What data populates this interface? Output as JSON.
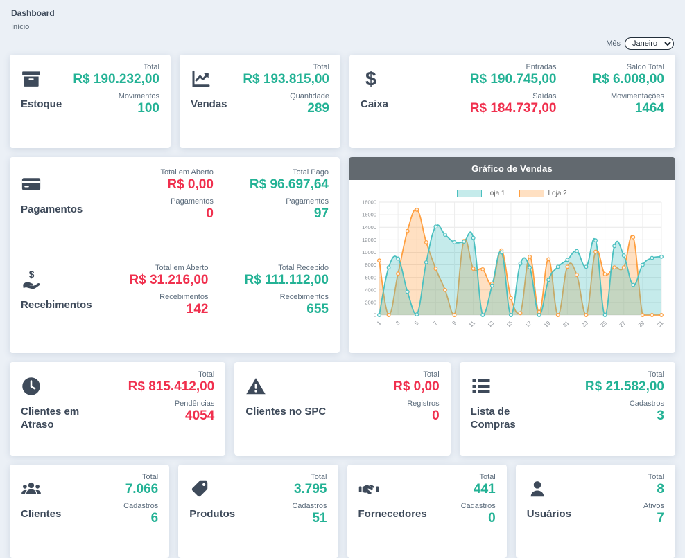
{
  "page": {
    "title": "Dashboard",
    "breadcrumb": "Início"
  },
  "month_filter": {
    "label": "Mês",
    "selected": "Janeiro"
  },
  "colors": {
    "green": "#23b295",
    "red": "#f0304e",
    "navy": "#3e4a5a",
    "chart_header_bg": "#62696f",
    "page_bg": "#ebf0f6",
    "series_teal": "#4bc0c0",
    "series_orange": "#ff9f40"
  },
  "cards": {
    "estoque": {
      "label": "Estoque",
      "icon": "box-icon",
      "stats": [
        {
          "label": "Total",
          "value": "R$ 190.232,00",
          "color": "green"
        },
        {
          "label": "Movimentos",
          "value": "100",
          "color": "green"
        }
      ]
    },
    "vendas": {
      "label": "Vendas",
      "icon": "line-chart-icon",
      "stats": [
        {
          "label": "Total",
          "value": "R$ 193.815,00",
          "color": "green"
        },
        {
          "label": "Quantidade",
          "value": "289",
          "color": "green"
        }
      ]
    },
    "caixa": {
      "label": "Caixa",
      "icon": "dollar-icon",
      "col1": [
        {
          "label": "Entradas",
          "value": "R$ 190.745,00",
          "color": "green"
        },
        {
          "label": "Saídas",
          "value": "R$ 184.737,00",
          "color": "red"
        }
      ],
      "col2": [
        {
          "label": "Saldo Total",
          "value": "R$ 6.008,00",
          "color": "green"
        },
        {
          "label": "Movimentações",
          "value": "1464",
          "color": "green"
        }
      ]
    },
    "pagamentos": {
      "label": "Pagamentos",
      "icon": "credit-card-icon",
      "col1": [
        {
          "label": "Total em Aberto",
          "value": "R$ 0,00",
          "color": "red"
        },
        {
          "label": "Pagamentos",
          "value": "0",
          "color": "red"
        }
      ],
      "col2": [
        {
          "label": "Total Pago",
          "value": "R$ 96.697,64",
          "color": "green"
        },
        {
          "label": "Pagamentos",
          "value": "97",
          "color": "green"
        }
      ]
    },
    "recebimentos": {
      "label": "Recebimentos",
      "icon": "hand-dollar-icon",
      "col1": [
        {
          "label": "Total em Aberto",
          "value": "R$ 31.216,00",
          "color": "red"
        },
        {
          "label": "Recebimentos",
          "value": "142",
          "color": "red"
        }
      ],
      "col2": [
        {
          "label": "Total Recebido",
          "value": "R$ 111.112,00",
          "color": "green"
        },
        {
          "label": "Recebimentos",
          "value": "655",
          "color": "green"
        }
      ]
    },
    "clientes_atraso": {
      "label": "Clientes em Atraso",
      "icon": "clock-icon",
      "stats": [
        {
          "label": "Total",
          "value": "R$ 815.412,00",
          "color": "red"
        },
        {
          "label": "Pendências",
          "value": "4054",
          "color": "red"
        }
      ]
    },
    "clientes_spc": {
      "label": "Clientes no SPC",
      "icon": "warning-icon",
      "stats": [
        {
          "label": "Total",
          "value": "R$ 0,00",
          "color": "red"
        },
        {
          "label": "Registros",
          "value": "0",
          "color": "red"
        }
      ]
    },
    "lista_compras": {
      "label": "Lista de Compras",
      "icon": "list-icon",
      "stats": [
        {
          "label": "Total",
          "value": "R$ 21.582,00",
          "color": "green"
        },
        {
          "label": "Cadastros",
          "value": "3",
          "color": "green"
        }
      ]
    },
    "clientes": {
      "label": "Clientes",
      "icon": "users-icon",
      "stats": [
        {
          "label": "Total",
          "value": "7.066",
          "color": "green"
        },
        {
          "label": "Cadastros",
          "value": "6",
          "color": "green"
        }
      ]
    },
    "produtos": {
      "label": "Produtos",
      "icon": "tag-icon",
      "stats": [
        {
          "label": "Total",
          "value": "3.795",
          "color": "green"
        },
        {
          "label": "Cadastros",
          "value": "51",
          "color": "green"
        }
      ]
    },
    "fornecedores": {
      "label": "Fornecedores",
      "icon": "handshake-icon",
      "stats": [
        {
          "label": "Total",
          "value": "441",
          "color": "green"
        },
        {
          "label": "Cadastros",
          "value": "0",
          "color": "green"
        }
      ]
    },
    "usuarios": {
      "label": "Usuários",
      "icon": "user-icon",
      "stats": [
        {
          "label": "Total",
          "value": "8",
          "color": "green"
        },
        {
          "label": "Ativos",
          "value": "7",
          "color": "green"
        }
      ]
    }
  },
  "chart_data": {
    "type": "area",
    "title": "Gráfico de Vendas",
    "x": [
      1,
      2,
      3,
      4,
      5,
      6,
      7,
      8,
      9,
      10,
      11,
      12,
      13,
      14,
      15,
      16,
      17,
      18,
      19,
      20,
      21,
      22,
      23,
      24,
      25,
      26,
      27,
      28,
      29,
      30,
      31
    ],
    "xticks_shown": [
      1,
      3,
      5,
      7,
      9,
      11,
      13,
      15,
      17,
      19,
      21,
      23,
      25,
      27,
      29,
      31
    ],
    "ylim": [
      0,
      18000
    ],
    "ytick_step": 2000,
    "grid": true,
    "legend_position": "top",
    "series": [
      {
        "name": "Loja 1",
        "color": "#4bc0c0",
        "fill": "rgba(75,192,192,0.32)",
        "values": [
          0,
          7600,
          9000,
          3700,
          100,
          8400,
          14100,
          12800,
          11600,
          11700,
          12300,
          0,
          4700,
          10000,
          0,
          8200,
          7600,
          0,
          5600,
          7700,
          8800,
          10200,
          7700,
          11900,
          0,
          11000,
          9500,
          4800,
          8000,
          9100,
          9300
        ]
      },
      {
        "name": "Loja 2",
        "color": "#ff9f40",
        "fill": "rgba(255,159,64,0.32)",
        "values": [
          8700,
          0,
          6600,
          13400,
          16800,
          11600,
          7400,
          4000,
          0,
          11800,
          7400,
          7300,
          5000,
          10300,
          2700,
          300,
          9300,
          500,
          8900,
          0,
          7700,
          6400,
          0,
          10100,
          6500,
          7600,
          7600,
          12400,
          0,
          0,
          0
        ]
      }
    ]
  }
}
